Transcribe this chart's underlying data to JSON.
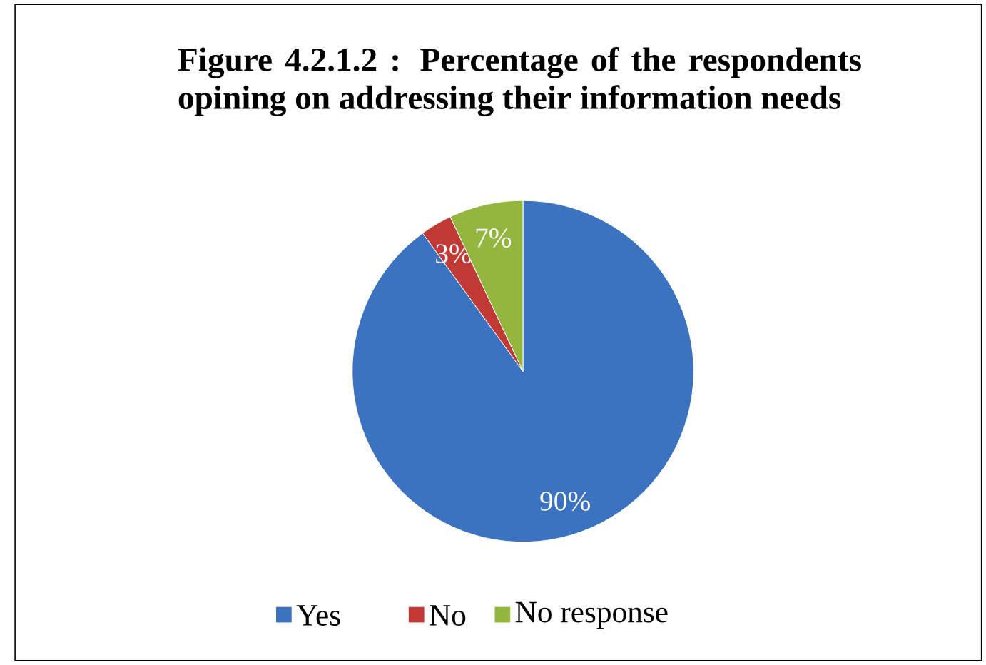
{
  "chart_data": {
    "type": "pie",
    "title": "Figure 4.2.1.2 : Percentage of the respondents opining on addressing their information needs",
    "categories": [
      "Yes",
      "No",
      "No response"
    ],
    "values": [
      90,
      3,
      7
    ],
    "colors": [
      "#3c73c0",
      "#c23a36",
      "#93b63e"
    ],
    "value_labels": [
      "90%",
      "3%",
      "7%"
    ],
    "legend": "bottom"
  }
}
